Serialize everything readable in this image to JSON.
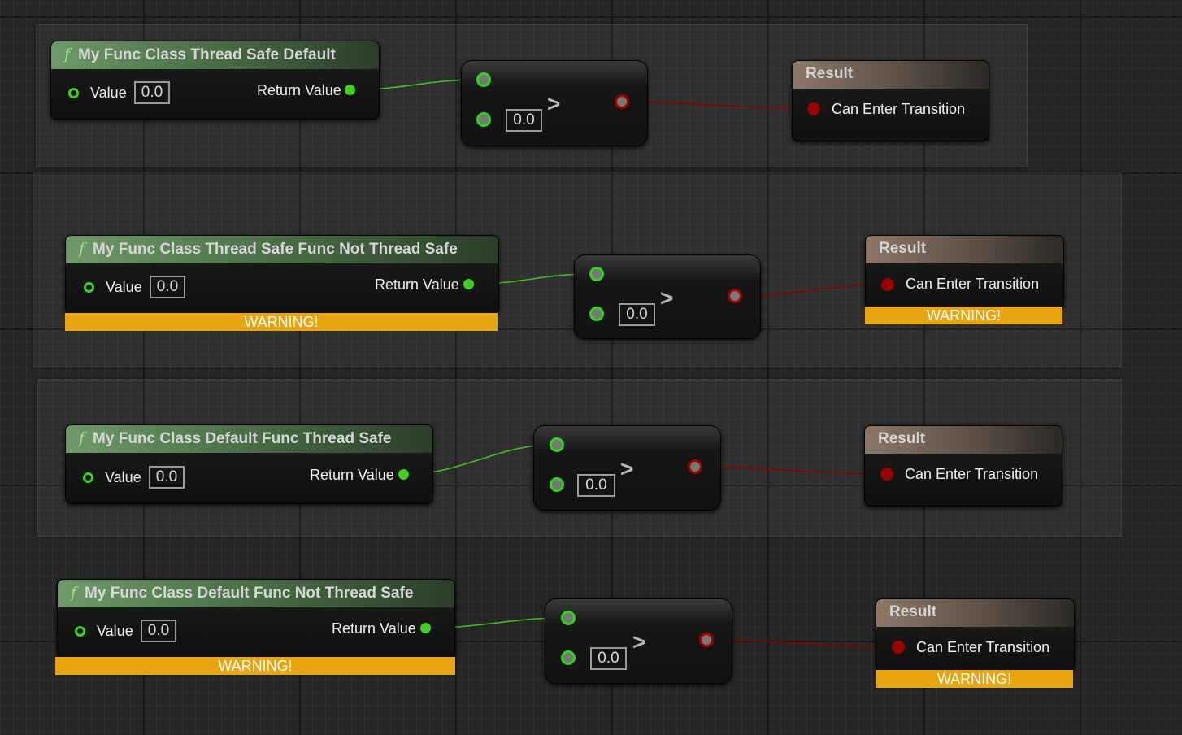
{
  "graph": {
    "rows": [
      {
        "function_node": {
          "icon": "function-icon",
          "title": "My Func Class Thread Safe Default",
          "input_label": "Value",
          "input_value": "0.0",
          "output_label": "Return Value"
        },
        "compare_node": {
          "operator": ">",
          "input_value": "0.0"
        },
        "result_node": {
          "title": "Result",
          "pin_label": "Can Enter Transition"
        }
      },
      {
        "function_node": {
          "icon": "function-icon",
          "title": "My Func Class Thread Safe Func Not Thread Safe",
          "input_label": "Value",
          "input_value": "0.0",
          "output_label": "Return Value",
          "warning": "WARNING!"
        },
        "compare_node": {
          "operator": ">",
          "input_value": "0.0"
        },
        "result_node": {
          "title": "Result",
          "pin_label": "Can Enter Transition",
          "warning": "WARNING!"
        }
      },
      {
        "function_node": {
          "icon": "function-icon",
          "title": "My Func Class Default Func Thread Safe",
          "input_label": "Value",
          "input_value": "0.0",
          "output_label": "Return Value"
        },
        "compare_node": {
          "operator": ">",
          "input_value": "0.0"
        },
        "result_node": {
          "title": "Result",
          "pin_label": "Can Enter Transition"
        }
      },
      {
        "function_node": {
          "icon": "function-icon",
          "title": "My Func Class Default Func Not Thread Safe",
          "input_label": "Value",
          "input_value": "0.0",
          "output_label": "Return Value",
          "warning": "WARNING!"
        },
        "compare_node": {
          "operator": ">",
          "input_value": "0.0"
        },
        "result_node": {
          "title": "Result",
          "pin_label": "Can Enter Transition",
          "warning": "WARNING!"
        }
      }
    ],
    "colors": {
      "float_pin": "#3bd31e",
      "bool_pin": "#a10000",
      "warning": "#e8a40c",
      "function_header": "#466842",
      "result_header": "#5d5046"
    }
  }
}
